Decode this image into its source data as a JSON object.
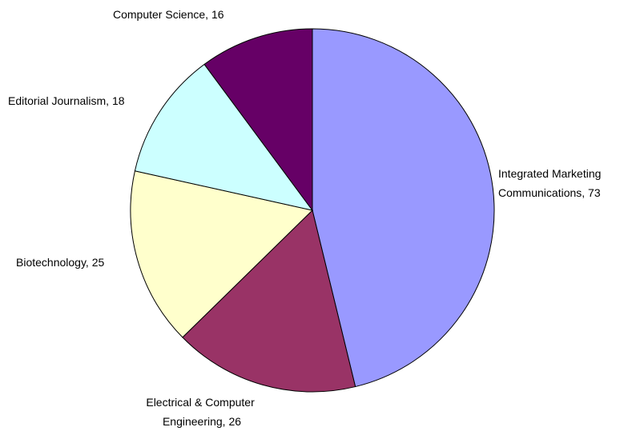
{
  "chart_data": {
    "type": "pie",
    "title": "",
    "slices": [
      {
        "label": "Integrated Marketing Communications",
        "value": 73,
        "display_lines": [
          "Integrated Marketing",
          "Communications, 73"
        ],
        "color": "#9999FF"
      },
      {
        "label": "Electrical & Computer Engineering",
        "value": 26,
        "display_lines": [
          "Electrical & Computer",
          "Engineering, 26"
        ],
        "color": "#993366"
      },
      {
        "label": "Biotechnology",
        "value": 25,
        "display_lines": [
          "Biotechnology, 25"
        ],
        "color": "#FFFFCC"
      },
      {
        "label": "Editorial Journalism",
        "value": 18,
        "display_lines": [
          "Editorial Journalism, 18"
        ],
        "color": "#CCFFFF"
      },
      {
        "label": "Computer Science",
        "value": 16,
        "display_lines": [
          "Computer Science, 16"
        ],
        "color": "#660066"
      }
    ],
    "start": "12 o'clock",
    "direction": "clockwise",
    "legend": "none",
    "slice_border_color": "#000000"
  }
}
